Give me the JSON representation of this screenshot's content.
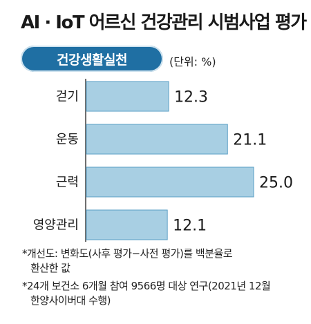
{
  "title": "AI · IoT 어르신 건강관리 시범사업 평가",
  "badge": "건강생활실천",
  "unit": "(단위: %)",
  "chart_data": {
    "type": "bar",
    "orientation": "horizontal",
    "categories": [
      "걷기",
      "운동",
      "근력",
      "영양관리"
    ],
    "values": [
      12.3,
      21.1,
      25.0,
      12.1
    ],
    "value_labels": [
      "12.3",
      "21.1",
      "25.0",
      "12.1"
    ],
    "xlim": [
      0,
      25
    ],
    "bar_color": "#a8cfe3",
    "bar_border_color": "#5a9fc4"
  },
  "notes": {
    "note1_line1": "*개선도: 변화도(사후 평가−사전 평가)를 백분율로",
    "note1_line2": "환산한 값",
    "note2_line1": "*24개 보건소 6개월 참여 9566명 대상 연구(2021년 12월",
    "note2_line2": "한양사이버대 수행)"
  }
}
